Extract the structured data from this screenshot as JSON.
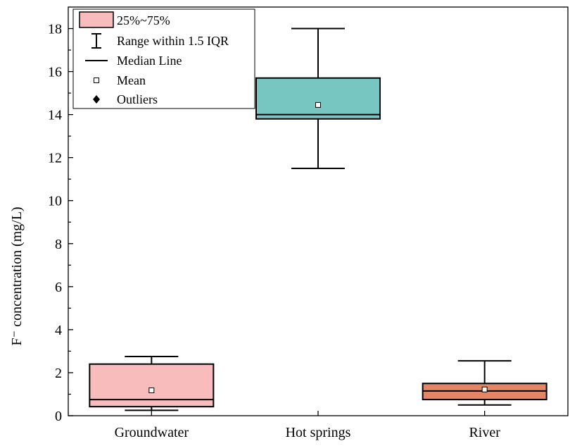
{
  "chart_data": {
    "type": "box",
    "ylabel": "F⁻ concentration (mg/L)",
    "xlabel": "",
    "ylim": [
      0,
      19
    ],
    "yticks": [
      0,
      2,
      4,
      6,
      8,
      10,
      12,
      14,
      16,
      18
    ],
    "categories": [
      "Groundwater",
      "Hot springs",
      "River"
    ],
    "boxes": [
      {
        "category": "Groundwater",
        "whisker_low": 0.25,
        "q1": 0.42,
        "median": 0.75,
        "q3": 2.4,
        "whisker_high": 2.75,
        "mean": 1.18,
        "fill": "#f8bcbc"
      },
      {
        "category": "Hot springs",
        "whisker_low": 11.5,
        "q1": 13.8,
        "median": 14.0,
        "q3": 15.7,
        "whisker_high": 18.0,
        "mean": 14.45,
        "fill": "#77c6c2"
      },
      {
        "category": "River",
        "whisker_low": 0.5,
        "q1": 0.75,
        "median": 1.15,
        "q3": 1.5,
        "whisker_high": 2.55,
        "mean": 1.22,
        "fill": "#e48566"
      }
    ],
    "legend": {
      "placement": "top-left",
      "entries": [
        "25%~75%",
        "Range within 1.5 IQR",
        "Median Line",
        "Mean",
        "Outliers"
      ]
    },
    "grid": false
  }
}
